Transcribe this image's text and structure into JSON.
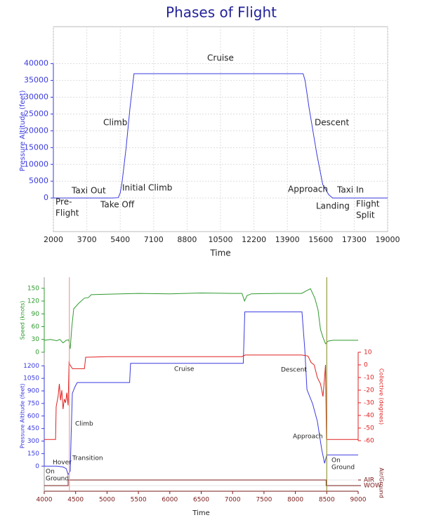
{
  "chart_data": [
    {
      "type": "line",
      "title": "Phases of Flight",
      "x_label": "Time",
      "y_label": "Pressure Altitude (feet)",
      "color": "#3a3adf",
      "grid": true,
      "x": [
        2000,
        3000,
        4000,
        5000,
        5300,
        5400,
        5500,
        5600,
        5700,
        5800,
        5900,
        6000,
        6100,
        6300,
        8000,
        10000,
        12000,
        14000,
        14700,
        14800,
        14900,
        15000,
        15200,
        15400,
        15600,
        15700,
        15800,
        16000,
        16200,
        17000,
        18000,
        19000
      ],
      "values": [
        0,
        0,
        0,
        0,
        100,
        1500,
        5000,
        10000,
        15000,
        21000,
        27000,
        32000,
        37000,
        37000,
        37000,
        37000,
        37000,
        37000,
        37000,
        35000,
        31000,
        27000,
        20000,
        13000,
        7000,
        4000,
        3000,
        1000,
        0,
        0,
        0,
        0
      ],
      "xlim": [
        2000,
        19000
      ],
      "xticks": [
        2000,
        3700,
        5400,
        7100,
        8800,
        10500,
        12200,
        13900,
        15600,
        17300,
        19000
      ],
      "ylim": [
        -10000,
        51000
      ],
      "yticks": [
        0,
        5000,
        10000,
        15000,
        20000,
        25000,
        30000,
        35000,
        40000
      ],
      "annotations": [
        "Cruise",
        "Climb",
        "Descent",
        "Taxi Out",
        "Initial Climb",
        "Approach",
        "Taxi In",
        "Pre-",
        "Flight",
        "Take Off",
        "Landing",
        "Flight",
        "Split"
      ]
    },
    {
      "type": "line",
      "x_label": "Time",
      "grid": false,
      "xlim": [
        4000,
        9000
      ],
      "xticks": [
        4000,
        4500,
        5000,
        5500,
        6000,
        6500,
        7000,
        7500,
        8000,
        8500,
        9000
      ],
      "ylim": [
        -300,
        2260
      ],
      "yticks": [
        0,
        150,
        300,
        450,
        600,
        750,
        900,
        1050,
        1200
      ],
      "y2lim": [
        -100,
        69.4
      ],
      "y2ticks": [
        -60,
        -50,
        -40,
        -30,
        -20,
        -10,
        0,
        10
      ],
      "y3lim": [
        -326,
        176
      ],
      "y3ticks": [
        0,
        30,
        60,
        90,
        120,
        150
      ],
      "y4lim": [
        -1,
        37.1
      ],
      "y4ticks": [
        {
          "value": 1,
          "label": "AIR"
        },
        {
          "value": 0,
          "label": "WOW"
        }
      ],
      "series": [
        {
          "name": "Speed (knots)",
          "color": "#2e9a2e",
          "axis": "y3",
          "x": [
            4000,
            4100,
            4200,
            4250,
            4300,
            4350,
            4390,
            4414,
            4440,
            4470,
            4550,
            4640,
            4700,
            4750,
            5000,
            5500,
            6000,
            6500,
            7000,
            7150,
            7190,
            7230,
            7300,
            7700,
            8100,
            8200,
            8240,
            8310,
            8360,
            8400,
            8440,
            8480,
            8520,
            8600,
            9000
          ],
          "values": [
            28,
            30,
            27,
            30,
            22,
            28,
            29,
            8,
            60,
            102,
            115,
            127,
            128,
            135,
            136,
            138,
            137,
            139,
            138,
            138,
            120,
            133,
            137,
            138,
            138,
            146,
            149,
            127,
            100,
            53,
            35,
            20,
            26,
            28,
            28
          ]
        },
        {
          "name": "Pressure Altitude (feet)",
          "color": "#3a3adf",
          "axis": "y",
          "x": [
            4000,
            4200,
            4300,
            4350,
            4380,
            4414,
            4430,
            4447,
            4490,
            4526,
            4800,
            5360,
            5375,
            6000,
            7000,
            7170,
            7195,
            7500,
            8105,
            8150,
            8185,
            8275,
            8350,
            8420,
            8465,
            8500,
            9000
          ],
          "values": [
            0,
            0,
            -10,
            -30,
            -100,
            -60,
            400,
            870,
            950,
            1000,
            1000,
            1000,
            1230,
            1230,
            1230,
            1230,
            1845,
            1845,
            1845,
            1400,
            915,
            745,
            537,
            200,
            34,
            134,
            134
          ]
        },
        {
          "name": "Collective (degrees)",
          "color": "#e02020",
          "axis": "y2",
          "x": [
            4000,
            4180,
            4190,
            4220,
            4240,
            4260,
            4280,
            4300,
            4320,
            4340,
            4360,
            4380,
            4395,
            4410,
            4450,
            4500,
            4640,
            4660,
            5000,
            6000,
            7150,
            7200,
            8100,
            8200,
            8250,
            8300,
            8350,
            8400,
            8440,
            8465,
            8480,
            8495,
            9000
          ],
          "values": [
            -59,
            -59,
            -33,
            -25,
            -15,
            -28,
            -20,
            -35,
            -27,
            -30,
            -22,
            -32,
            3,
            0,
            -3,
            -3,
            -3,
            6,
            6.5,
            6.5,
            6.5,
            7.8,
            7.8,
            7,
            2,
            0,
            -10,
            -15,
            -25,
            -10,
            0,
            -59,
            -59
          ]
        },
        {
          "name": "Air/Ground",
          "color": "#7a1a1a",
          "axis": "y4",
          "x": [
            4000,
            4380,
            4380,
            8490,
            8490,
            9000
          ],
          "values": [
            0,
            0,
            1,
            1,
            0,
            0
          ]
        }
      ],
      "markers": [
        {
          "x": 4400,
          "color": "#e8a0a0"
        },
        {
          "x": 8500,
          "color": "#9a9a40"
        }
      ],
      "annotations": [
        "Hover",
        "On",
        "Ground",
        "Transition",
        "Climb",
        "Cruise",
        "Descent",
        "Approach",
        "On",
        "Ground"
      ]
    }
  ]
}
